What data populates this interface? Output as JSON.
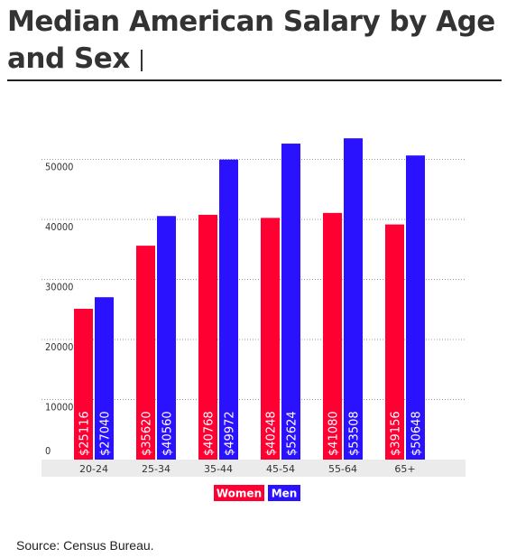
{
  "title": "Median American Salary by Age and Sex",
  "source": "Source: Census Bureau.",
  "colors": {
    "women": "#ff0033",
    "men": "#2a12ff",
    "axis_band": "#ebebeb",
    "grid": "#999999"
  },
  "chart_data": {
    "type": "bar",
    "categories": [
      "20-24",
      "25-34",
      "35-44",
      "45-54",
      "55-64",
      "65+"
    ],
    "series": [
      {
        "name": "Women",
        "values": [
          25116,
          35620,
          40768,
          40248,
          41080,
          39156
        ]
      },
      {
        "name": "Men",
        "values": [
          27040,
          40560,
          49972,
          52624,
          53508,
          50648
        ]
      }
    ],
    "yticks": [
      "0",
      "10000",
      "20000",
      "30000",
      "40000",
      "50000"
    ],
    "ylim": [
      0,
      60000
    ],
    "grid": true,
    "legend": "bottom-center",
    "data_labels": true
  }
}
